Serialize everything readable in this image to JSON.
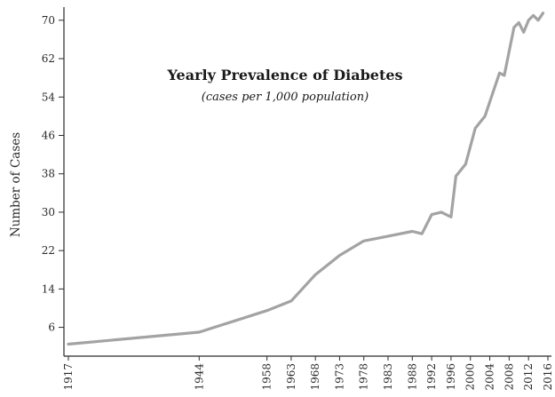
{
  "chart_data": {
    "type": "line",
    "title": "Yearly Prevalence of Diabetes",
    "subtitle": "(cases per 1,000 population)",
    "xlabel": "",
    "ylabel": "Number of Cases",
    "xlim": [
      1917,
      2016
    ],
    "ylim": [
      0,
      72
    ],
    "x_ticks": [
      1917,
      1944,
      1958,
      1963,
      1968,
      1973,
      1978,
      1983,
      1988,
      1992,
      1996,
      2000,
      2004,
      2008,
      2012,
      2016
    ],
    "y_ticks": [
      6,
      14,
      22,
      30,
      38,
      46,
      54,
      62,
      70
    ],
    "grid": false,
    "line_color": "#a3a3a3",
    "series": [
      {
        "x": [
          1917,
          1944,
          1958,
          1963,
          1968,
          1973,
          1978,
          1983,
          1988,
          1990,
          1992,
          1994,
          1996,
          1997,
          1999,
          2001,
          2003,
          2006,
          2007,
          2009,
          2010,
          2011,
          2012,
          2013,
          2014,
          2015
        ],
        "y": [
          2.5,
          5.0,
          9.5,
          11.5,
          17.0,
          21.0,
          24.0,
          25.0,
          26.0,
          25.5,
          29.5,
          30.0,
          29.0,
          37.5,
          40.0,
          47.5,
          50.0,
          59.0,
          58.5,
          68.5,
          69.5,
          67.5,
          70.0,
          71.0,
          70.0,
          71.5
        ]
      }
    ]
  }
}
